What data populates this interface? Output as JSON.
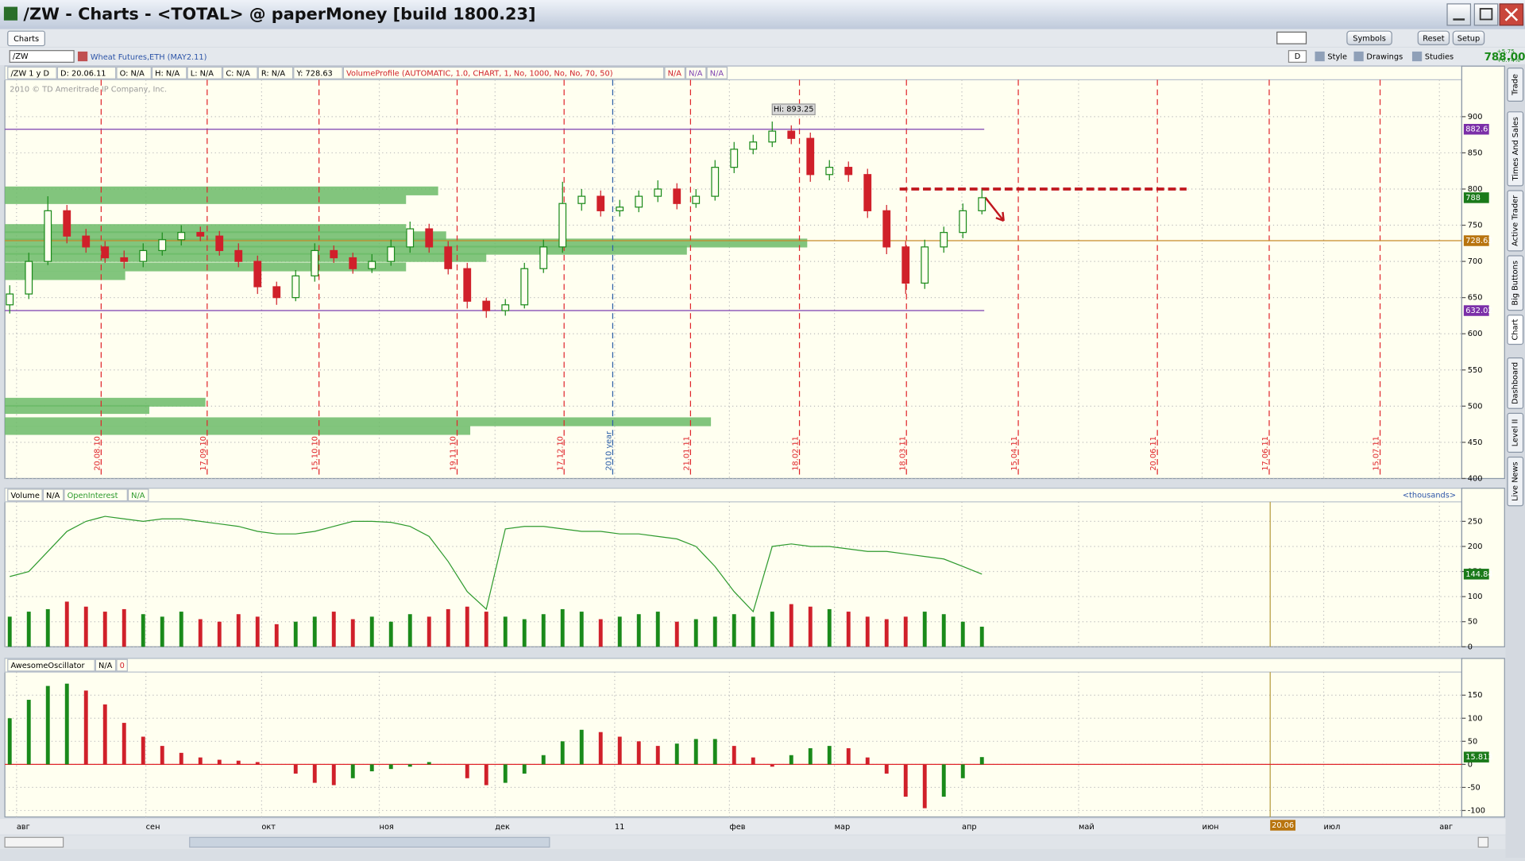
{
  "window": {
    "title": "/ZW - Charts - <TOTAL> @ paperMoney [build 1800.23]"
  },
  "toolbar": {
    "tab": "Charts",
    "buttons": [
      "Symbols",
      "Reset",
      "Setup"
    ]
  },
  "symbol_bar": {
    "symbol": "/ZW",
    "description": "Wheat Futures,ETH (MAY2.11)",
    "period": "D",
    "tools": [
      "Style",
      "Drawings",
      "Studies"
    ],
    "last": "788.00",
    "change": "+5.75",
    "change_pct": "+0.74%"
  },
  "sidebar": [
    "Trade",
    "Times And Sales",
    "Active Trader",
    "Big Buttons",
    "Chart",
    "Dashboard",
    "Level II",
    "Live News"
  ],
  "copyright": "2010 © TD Ameritrade IP Company, Inc.",
  "time_axis": {
    "labels": [
      "авг",
      "сен",
      "окт",
      "ноя",
      "дек",
      "11",
      "фев",
      "мар",
      "апр",
      "май",
      "июн",
      "июл",
      "авг"
    ],
    "cursor_label": "20.06"
  },
  "chart_data": [
    {
      "type": "candlestick",
      "legend": [
        {
          "text": "/ZW 1 y D",
          "color": "#000000"
        },
        {
          "text": "D: 20.06.11",
          "color": "#000000"
        },
        {
          "text": "O: N/A",
          "color": "#000000"
        },
        {
          "text": "H: N/A",
          "color": "#000000"
        },
        {
          "text": "L: N/A",
          "color": "#000000"
        },
        {
          "text": "C: N/A",
          "color": "#000000"
        },
        {
          "text": "R: N/A",
          "color": "#000000"
        },
        {
          "text": "Y: 728.63",
          "color": "#000000"
        },
        {
          "text": "VolumeProfile (AUTOMATIC, 1.0, CHART, 1, No, 1000, No, No, 70, 50)",
          "color": "#d0202a"
        },
        {
          "text": "N/A",
          "color": "#d0202a"
        },
        {
          "text": "N/A",
          "color": "#7b3fb0"
        },
        {
          "text": "N/A",
          "color": "#7b3fb0"
        }
      ],
      "open": [
        640,
        655,
        700,
        770,
        735,
        720,
        705,
        700,
        715,
        730,
        740,
        735,
        715,
        700,
        665,
        650,
        680,
        715,
        705,
        690,
        700,
        720,
        745,
        720,
        690,
        645,
        632,
        640,
        690,
        720,
        780,
        790,
        770,
        775,
        790,
        800,
        780,
        790,
        830,
        855,
        865,
        880,
        870,
        820,
        830,
        820,
        770,
        720,
        670,
        720,
        740,
        770
      ],
      "high": [
        667,
        712,
        790,
        778,
        745,
        728,
        715,
        725,
        740,
        750,
        748,
        742,
        725,
        708,
        672,
        688,
        725,
        722,
        712,
        710,
        730,
        755,
        752,
        728,
        698,
        650,
        648,
        698,
        730,
        810,
        800,
        798,
        785,
        798,
        812,
        808,
        800,
        840,
        865,
        875,
        893.25,
        888,
        878,
        840,
        838,
        828,
        778,
        728,
        730,
        748,
        780,
        800
      ],
      "low": [
        628,
        648,
        695,
        725,
        712,
        698,
        690,
        692,
        708,
        722,
        728,
        708,
        692,
        655,
        640,
        645,
        672,
        698,
        683,
        684,
        694,
        712,
        712,
        682,
        635,
        622,
        625,
        635,
        684,
        712,
        770,
        762,
        762,
        768,
        782,
        772,
        774,
        784,
        822,
        848,
        858,
        862,
        810,
        812,
        810,
        760,
        710,
        655,
        662,
        712,
        732,
        765
      ],
      "close": [
        655,
        700,
        770,
        735,
        720,
        705,
        700,
        715,
        730,
        740,
        735,
        715,
        700,
        665,
        650,
        680,
        715,
        705,
        690,
        700,
        720,
        745,
        720,
        690,
        645,
        632,
        640,
        690,
        720,
        780,
        790,
        770,
        775,
        790,
        800,
        780,
        790,
        830,
        855,
        865,
        880,
        870,
        820,
        830,
        820,
        770,
        720,
        670,
        720,
        740,
        770,
        788
      ],
      "up_color": "#1a8a1a",
      "down_color": "#d0202a",
      "hi_label": "Hi: 893.25",
      "profile_prices": [
        797,
        785,
        745,
        735,
        725,
        715,
        705,
        692,
        680,
        505,
        495,
        478,
        466
      ],
      "profile_volumes": [
        54,
        50,
        50,
        55,
        100,
        85,
        60,
        50,
        15,
        25,
        18,
        88,
        58
      ],
      "profile_color": "#6cbb68",
      "levels": [
        {
          "value": 882.6,
          "color": "#7b3fb0"
        },
        {
          "value": 632.02,
          "color": "#7b3fb0"
        },
        {
          "value": 728.63,
          "color": "#c88a2a"
        }
      ],
      "resistance": 800,
      "badges": [
        {
          "value": 882.6,
          "color": "#7b2fa8"
        },
        {
          "value": 788,
          "color": "#1a7a1a"
        },
        {
          "value": 728.63,
          "color": "#b8740e"
        },
        {
          "value": 632.02,
          "color": "#7b2fa8"
        }
      ],
      "markers": [
        {
          "label": "20.08.10",
          "color": "#e0262b"
        },
        {
          "label": "17.09.10",
          "color": "#e0262b"
        },
        {
          "label": "15.10.10",
          "color": "#e0262b"
        },
        {
          "label": "19.11.10",
          "color": "#e0262b"
        },
        {
          "label": "17.12.10",
          "color": "#e0262b"
        },
        {
          "label": "2010 year",
          "color": "#2c5fa8"
        },
        {
          "label": "21.01.11",
          "color": "#e0262b"
        },
        {
          "label": "18.02.11",
          "color": "#e0262b"
        },
        {
          "label": "18.03.11",
          "color": "#e0262b"
        },
        {
          "label": "15.04.11",
          "color": "#e0262b"
        },
        {
          "label": "20.06.11",
          "color": "#e0262b"
        },
        {
          "label": "17.06.11",
          "color": "#e0262b"
        },
        {
          "label": "15.07.11",
          "color": "#e0262b"
        }
      ],
      "ylim": [
        400,
        951
      ],
      "yticks": [
        400,
        450,
        500,
        550,
        600,
        650,
        700,
        750,
        800,
        850,
        900
      ],
      "grid": true
    },
    {
      "type": "bar",
      "units_label": "<thousands>",
      "series": [
        {
          "name": "Volume",
          "legend_value": "N/A",
          "up_color": "#1a8a1a",
          "down_color": "#d0202a",
          "values": [
            60,
            70,
            75,
            90,
            80,
            70,
            75,
            65,
            60,
            70,
            55,
            50,
            65,
            60,
            45,
            50,
            60,
            70,
            55,
            60,
            50,
            65,
            60,
            75,
            80,
            70,
            60,
            55,
            65,
            75,
            70,
            55,
            60,
            65,
            70,
            50,
            55,
            60,
            65,
            60,
            70,
            85,
            80,
            75,
            70,
            60,
            55,
            60,
            70,
            65,
            50,
            40
          ]
        },
        {
          "name": "OpenInterest",
          "legend_value": "N/A",
          "color": "#2e9a2e",
          "values": [
            140,
            150,
            190,
            230,
            250,
            260,
            255,
            250,
            255,
            255,
            250,
            245,
            240,
            230,
            225,
            225,
            230,
            240,
            250,
            250,
            248,
            240,
            220,
            170,
            110,
            75,
            235,
            240,
            240,
            235,
            230,
            230,
            225,
            225,
            220,
            215,
            200,
            160,
            110,
            70,
            200,
            205,
            200,
            200,
            195,
            190,
            190,
            185,
            180,
            175,
            160,
            144.84
          ]
        }
      ],
      "badges": [
        {
          "value": 144.84,
          "color": "#1a7a1a"
        }
      ],
      "ylim": [
        0,
        285
      ],
      "yticks": [
        0,
        50,
        100,
        150,
        200,
        250
      ],
      "grid": true
    },
    {
      "type": "bar",
      "legend": [
        {
          "text": "AwesomeOscillator",
          "color": "#000000"
        },
        {
          "text": "N/A",
          "color": "#000000"
        },
        {
          "text": "0",
          "color": "#d0202a"
        }
      ],
      "values": [
        100,
        140,
        170,
        175,
        160,
        130,
        90,
        60,
        40,
        25,
        15,
        10,
        8,
        5,
        0,
        -20,
        -40,
        -45,
        -30,
        -15,
        -10,
        -5,
        5,
        0,
        -30,
        -45,
        -40,
        -20,
        20,
        50,
        75,
        70,
        60,
        50,
        40,
        45,
        55,
        55,
        40,
        15,
        -5,
        20,
        35,
        40,
        35,
        15,
        -20,
        -70,
        -95,
        -70,
        -30,
        15.813
      ],
      "up_color": "#1a8a1a",
      "down_color": "#d0202a",
      "zero_color": "#e0262b",
      "badges": [
        {
          "value": 15.813,
          "color": "#1a7a1a"
        }
      ],
      "ylim": [
        -114,
        198
      ],
      "yticks": [
        -100,
        -50,
        0,
        50,
        100,
        150
      ],
      "grid": true
    }
  ]
}
